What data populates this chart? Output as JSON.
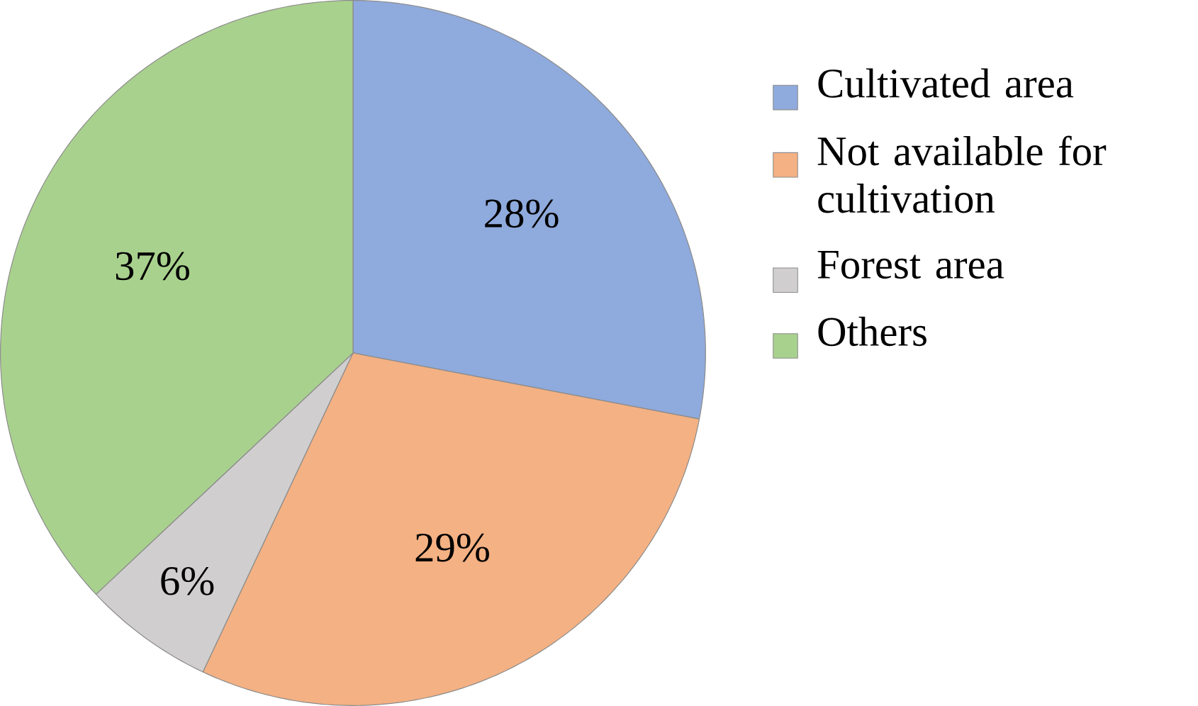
{
  "chart_data": {
    "type": "pie",
    "categories": [
      "Cultivated area",
      "Not available for cultivation",
      "Forest area",
      "Others"
    ],
    "values": [
      28,
      29,
      6,
      37
    ],
    "value_labels": [
      "28%",
      "29%",
      "6%",
      "37%"
    ],
    "colors": [
      "#8faadc",
      "#f4b183",
      "#d0cece",
      "#a9d18e"
    ],
    "legend": "right"
  }
}
